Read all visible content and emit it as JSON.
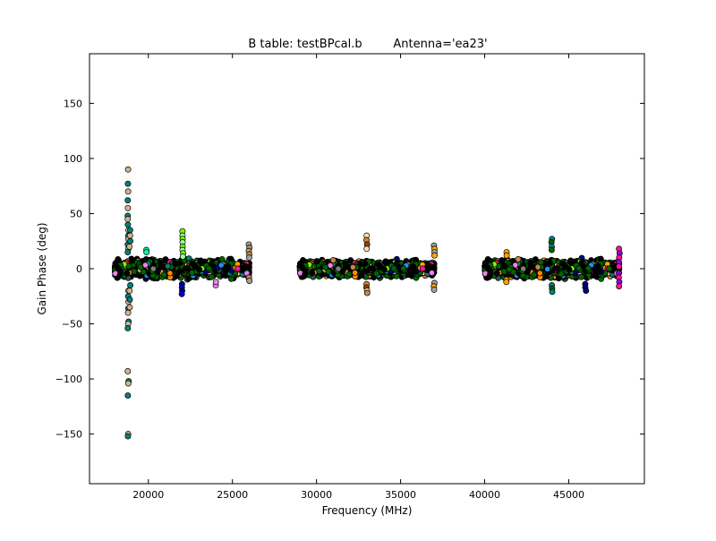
{
  "chart_data": {
    "type": "scatter",
    "title": "B table: testBPcal.b",
    "subtitle": "Antenna='ea23'",
    "xlabel": "Frequency (MHz)",
    "ylabel": "Gain Phase (deg)",
    "xlim": [
      16500,
      49500
    ],
    "ylim": [
      -195,
      195
    ],
    "xticks": [
      20000,
      25000,
      30000,
      35000,
      40000,
      45000
    ],
    "xtick_labels": [
      "20000",
      "25000",
      "30000",
      "35000",
      "40000",
      "45000"
    ],
    "yticks": [
      150,
      100,
      50,
      0,
      -50,
      -100,
      -150
    ],
    "ytick_labels": [
      "150",
      "100",
      "50",
      "0",
      "−50",
      "−100",
      "−150"
    ],
    "grid": false,
    "palette": [
      "#000000",
      "#d2b48c",
      "#008080",
      "#7cfc00",
      "#000080",
      "#ff8c00",
      "#8b0000",
      "#006400",
      "#ffa500",
      "#ff1493",
      "#9400d3",
      "#cd853f",
      "#2f4f4f",
      "#ee82ee",
      "#1e90ff",
      "#dc143c",
      "#808080",
      "#ffdead"
    ],
    "bands": [
      {
        "x_min": 18000,
        "x_max": 26000,
        "y_spread": 10
      },
      {
        "x_min": 29000,
        "x_max": 37000,
        "y_spread": 9
      },
      {
        "x_min": 40000,
        "x_max": 48000,
        "y_spread": 10
      }
    ],
    "spikes": [
      {
        "x": 18800,
        "y_values": [
          90,
          77,
          70,
          62,
          55,
          48,
          45,
          40,
          35,
          30,
          27,
          22,
          18,
          15,
          -20,
          -25,
          -30,
          -36,
          -40,
          -48,
          -50,
          -54,
          -93,
          -102,
          -104,
          -115,
          -150,
          -152
        ],
        "colors": [
          "#d2b48c",
          "#008080"
        ]
      },
      {
        "x": 18900,
        "y_values": [
          35,
          30,
          25,
          20,
          -15,
          -20,
          -28,
          -35
        ],
        "colors": [
          "#008080",
          "#d2b48c"
        ]
      },
      {
        "x": 19900,
        "y_values": [
          17,
          15
        ],
        "colors": [
          "#00fa9a"
        ]
      },
      {
        "x": 22050,
        "y_values": [
          34,
          30,
          27,
          24,
          20,
          17,
          14,
          11
        ],
        "colors": [
          "#7cfc00",
          "#98fb98"
        ]
      },
      {
        "x": 22000,
        "y_values": [
          -14,
          -17,
          -20,
          -23
        ],
        "colors": [
          "#000080",
          "#0000cd"
        ]
      },
      {
        "x": 24000,
        "y_values": [
          -15,
          -12
        ],
        "colors": [
          "#ee82ee"
        ]
      },
      {
        "x": 26000,
        "y_values": [
          22,
          19,
          16,
          13,
          10,
          -8,
          -11
        ],
        "colors": [
          "#a0a0a0",
          "#cd853f"
        ]
      },
      {
        "x": 33000,
        "y_values": [
          30,
          26,
          22,
          18,
          -14,
          -17,
          -20,
          -22
        ],
        "colors": [
          "#ffdead",
          "#cd853f",
          "#8b4513"
        ]
      },
      {
        "x": 37000,
        "y_values": [
          21,
          18,
          15,
          12,
          -13,
          -16,
          -19
        ],
        "colors": [
          "#a0a0a0",
          "#ffa500"
        ]
      },
      {
        "x": 41300,
        "y_values": [
          15,
          12,
          -10,
          -12
        ],
        "colors": [
          "#ffa500"
        ]
      },
      {
        "x": 44000,
        "y_values": [
          27,
          24,
          20,
          17,
          -15,
          -18,
          -21
        ],
        "colors": [
          "#008080",
          "#006400"
        ]
      },
      {
        "x": 46000,
        "y_values": [
          -14,
          -17,
          -20
        ],
        "colors": [
          "#000080"
        ]
      },
      {
        "x": 48000,
        "y_values": [
          18,
          14,
          10,
          6,
          2,
          -4,
          -8,
          -12,
          -16
        ],
        "colors": [
          "#ff1493",
          "#9400d3"
        ]
      }
    ]
  }
}
